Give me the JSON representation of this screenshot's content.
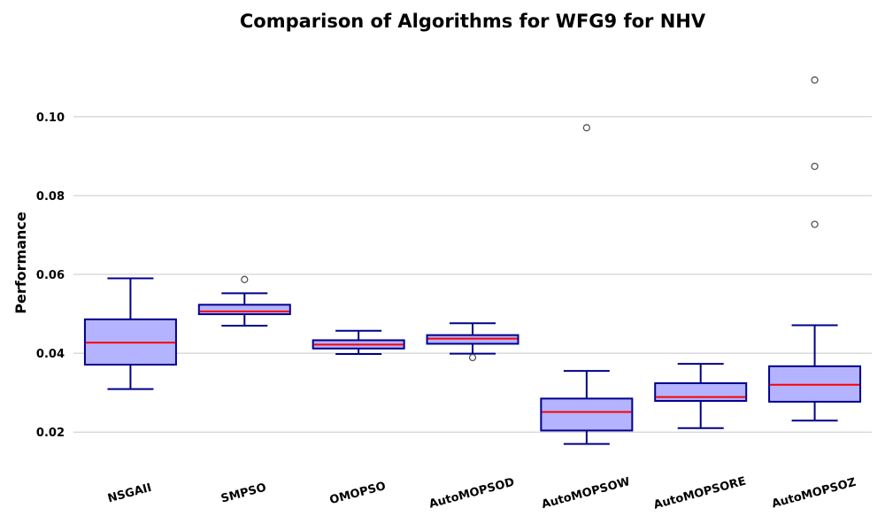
{
  "chart_data": {
    "type": "box",
    "title": "Comparison of Algorithms for WFG9 for NHV",
    "xlabel": "",
    "ylabel": "Performance",
    "ylim": [
      0.0095,
      0.1195
    ],
    "yticks": [
      0.02,
      0.04,
      0.06,
      0.08,
      0.1
    ],
    "ytick_labels": [
      "0.02",
      "0.04",
      "0.06",
      "0.08",
      "0.10"
    ],
    "grid": "horizontal",
    "colors": {
      "box_fill": "#b3b3ff",
      "box_edge": "#00008b",
      "whisker": "#00008b",
      "median": "#ff0000",
      "flier": "#555555",
      "grid": "#c8c8c8"
    },
    "categories": [
      "NSGAII",
      "SMPSO",
      "OMOPSO",
      "AutoMOPSOD",
      "AutoMOPSOW",
      "AutoMOPSORE",
      "AutoMOPSOZ"
    ],
    "boxes": [
      {
        "name": "NSGAII",
        "whislo": 0.0309,
        "q1": 0.0371,
        "med": 0.0427,
        "q3": 0.0486,
        "whishi": 0.059,
        "fliers": []
      },
      {
        "name": "SMPSO",
        "whislo": 0.047,
        "q1": 0.0499,
        "med": 0.0506,
        "q3": 0.0523,
        "whishi": 0.0552,
        "fliers": [
          0.0587
        ]
      },
      {
        "name": "OMOPSO",
        "whislo": 0.0398,
        "q1": 0.0412,
        "med": 0.0422,
        "q3": 0.0433,
        "whishi": 0.0457,
        "fliers": []
      },
      {
        "name": "AutoMOPSOD",
        "whislo": 0.0399,
        "q1": 0.0424,
        "med": 0.0437,
        "q3": 0.0446,
        "whishi": 0.0476,
        "fliers": [
          0.0389
        ]
      },
      {
        "name": "AutoMOPSOW",
        "whislo": 0.017,
        "q1": 0.0204,
        "med": 0.0251,
        "q3": 0.0285,
        "whishi": 0.0355,
        "fliers": [
          0.0972
        ]
      },
      {
        "name": "AutoMOPSORE",
        "whislo": 0.021,
        "q1": 0.0279,
        "med": 0.0289,
        "q3": 0.0324,
        "whishi": 0.0373,
        "fliers": []
      },
      {
        "name": "AutoMOPSOZ",
        "whislo": 0.0229,
        "q1": 0.0277,
        "med": 0.032,
        "q3": 0.0367,
        "whishi": 0.0471,
        "fliers": [
          0.0727,
          0.0874,
          0.1093
        ]
      }
    ]
  }
}
